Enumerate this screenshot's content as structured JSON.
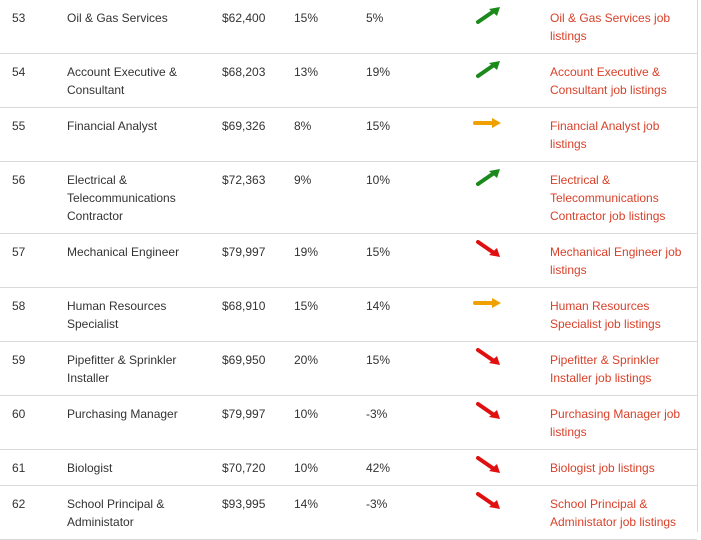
{
  "colors": {
    "up": "#1a8a1a",
    "flat": "#f0a000",
    "down": "#e01010",
    "link": "#d9412a",
    "rule": "#d9d9d9"
  },
  "rows": [
    {
      "rank": "53",
      "title": "Oil & Gas Services",
      "salary": "$62,400",
      "growth": "15%",
      "change": "5%",
      "trend": "up-arrow-icon",
      "link": "Oil & Gas Services job listings"
    },
    {
      "rank": "54",
      "title": "Account Executive & Consultant",
      "salary": "$68,203",
      "growth": "13%",
      "change": "19%",
      "trend": "up-arrow-icon",
      "link": "Account Executive & Consultant job listings"
    },
    {
      "rank": "55",
      "title": "Financial Analyst",
      "salary": "$69,326",
      "growth": "8%",
      "change": "15%",
      "trend": "right-arrow-icon",
      "link": "Financial Analyst job listings"
    },
    {
      "rank": "56",
      "title": "Electrical & Telecommunications Contractor",
      "salary": "$72,363",
      "growth": "9%",
      "change": "10%",
      "trend": "up-arrow-icon",
      "link": "Electrical & Telecommunications Contractor job listings"
    },
    {
      "rank": "57",
      "title": "Mechanical Engineer",
      "salary": "$79,997",
      "growth": "19%",
      "change": "15%",
      "trend": "down-arrow-icon",
      "link": "Mechanical Engineer job listings"
    },
    {
      "rank": "58",
      "title": "Human Resources Specialist",
      "salary": "$68,910",
      "growth": "15%",
      "change": "14%",
      "trend": "right-arrow-icon",
      "link": "Human Resources Specialist job listings"
    },
    {
      "rank": "59",
      "title": "Pipefitter & Sprinkler Installer",
      "salary": "$69,950",
      "growth": "20%",
      "change": "15%",
      "trend": "down-arrow-icon",
      "link": "Pipefitter & Sprinkler Installer job listings"
    },
    {
      "rank": "60",
      "title": "Purchasing Manager",
      "salary": "$79,997",
      "growth": "10%",
      "change": "-3%",
      "trend": "down-arrow-icon",
      "link": "Purchasing Manager job listings"
    },
    {
      "rank": "61",
      "title": "Biologist",
      "salary": "$70,720",
      "growth": "10%",
      "change": "42%",
      "trend": "down-arrow-icon",
      "link": "Biologist job listings"
    },
    {
      "rank": "62",
      "title": "School Principal & Administator",
      "salary": "$93,995",
      "growth": "14%",
      "change": "-3%",
      "trend": "down-arrow-icon",
      "link": "School Principal & Administator job listings"
    }
  ]
}
